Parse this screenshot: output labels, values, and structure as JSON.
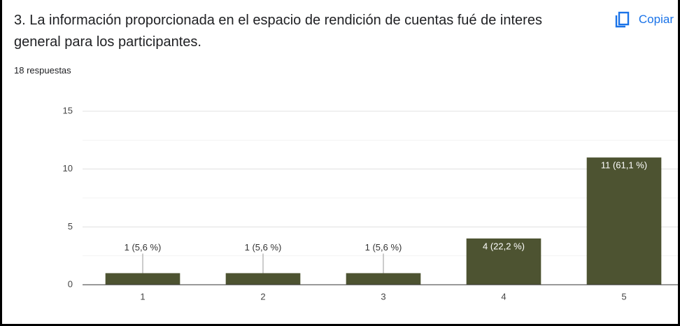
{
  "header": {
    "question": "3. La información proporcionada en el espacio de rendición de cuentas fué de interes general para los participantes.",
    "copy_button": "Copiar",
    "responses": "18 respuestas"
  },
  "chart_data": {
    "type": "bar",
    "categories": [
      "1",
      "2",
      "3",
      "4",
      "5"
    ],
    "values": [
      1,
      1,
      1,
      4,
      11
    ],
    "value_labels": [
      "1 (5,6 %)",
      "1 (5,6 %)",
      "1 (5,6 %)",
      "4 (22,2 %)",
      "11 (61,1 %)"
    ],
    "color": "#4d5331",
    "ylim": [
      0,
      15
    ],
    "yticks": [
      0,
      5,
      10,
      15
    ],
    "minor_yticks": [
      2.5,
      7.5,
      12.5
    ],
    "grid": true
  }
}
